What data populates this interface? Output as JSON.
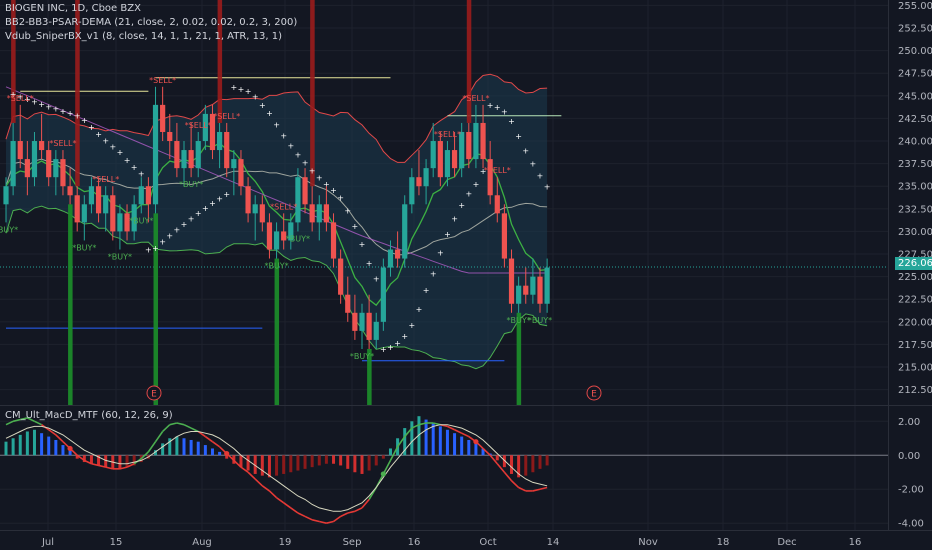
{
  "header": {
    "symbol_line": "BIOGEN INC, 1D, Cboe BZX",
    "indicator_1": "BB2-BB3-PSAR-DEMA (21, close, 2, 0.02, 0.02, 0.2, 3, 200)",
    "indicator_2": "Vdub_SniperBX_v1 (8, close, 14, 1, 1, 21, 1, ATR, 13, 1)",
    "macd_title": "CM_Ult_MacD_MTF (60, 12, 26, 9)",
    "last_price": "226.06"
  },
  "colors": {
    "background": "#131722",
    "grid": "#1e222d",
    "bull": "#ef5350",
    "bear": "#26a69a",
    "band_fill": "#1c3a4f",
    "red_bar": "#9b1c1c",
    "green_bar": "#1b8a2a",
    "sell_label": "#ef5350",
    "buy_label": "#4caf50",
    "psar": "#ffffff",
    "macd_blue": "#2962ff",
    "macd_red": "#d32f2f"
  },
  "chart_data": [
    {
      "type": "candlestick",
      "price_axis": {
        "ticks": [
          212.5,
          215.0,
          217.5,
          220.0,
          222.5,
          225.0,
          227.5,
          230.0,
          232.5,
          235.0,
          237.5,
          240.0,
          242.5,
          245.0,
          247.5,
          250.0,
          252.5,
          255.0
        ],
        "range": [
          210.8,
          255.6
        ]
      },
      "time_axis": {
        "labels": [
          "Jul",
          "15",
          "Aug",
          "19",
          "Sep",
          "16",
          "Oct",
          "14",
          "Nov",
          "18",
          "Dec",
          "16"
        ]
      },
      "candles": [
        [
          233,
          236,
          231,
          235
        ],
        [
          235,
          242,
          234,
          240
        ],
        [
          240,
          244,
          237,
          238
        ],
        [
          238,
          240,
          234,
          236
        ],
        [
          236,
          241,
          235,
          240
        ],
        [
          240,
          243,
          238,
          239
        ],
        [
          239,
          240,
          235,
          236
        ],
        [
          236,
          239,
          234,
          238
        ],
        [
          238,
          239,
          234,
          235
        ],
        [
          235,
          237,
          233,
          234
        ],
        [
          234,
          235,
          230,
          231
        ],
        [
          231,
          234,
          229,
          233
        ],
        [
          233,
          236,
          232,
          235
        ],
        [
          235,
          236,
          231,
          232
        ],
        [
          232,
          235,
          230,
          234
        ],
        [
          234,
          235,
          229,
          230
        ],
        [
          230,
          233,
          228,
          232
        ],
        [
          232,
          233,
          229,
          230
        ],
        [
          230,
          234,
          229,
          233
        ],
        [
          233,
          236,
          232,
          235
        ],
        [
          235,
          236,
          231,
          233
        ],
        [
          233,
          246,
          232,
          244
        ],
        [
          244,
          246,
          240,
          241
        ],
        [
          241,
          243,
          238,
          240
        ],
        [
          240,
          242,
          236,
          237
        ],
        [
          237,
          240,
          235,
          239
        ],
        [
          239,
          242,
          236,
          237
        ],
        [
          237,
          241,
          236,
          240
        ],
        [
          240,
          244,
          239,
          243
        ],
        [
          243,
          244,
          238,
          239
        ],
        [
          239,
          242,
          237,
          241
        ],
        [
          241,
          242,
          236,
          237
        ],
        [
          237,
          239,
          234,
          238
        ],
        [
          238,
          239,
          234,
          235
        ],
        [
          235,
          236,
          231,
          232
        ],
        [
          232,
          234,
          229,
          233
        ],
        [
          233,
          234,
          230,
          231
        ],
        [
          231,
          232,
          227,
          228
        ],
        [
          228,
          231,
          227,
          230
        ],
        [
          230,
          232,
          228,
          229
        ],
        [
          229,
          232,
          228,
          231
        ],
        [
          231,
          237,
          230,
          236
        ],
        [
          236,
          237,
          232,
          233
        ],
        [
          233,
          235,
          230,
          231
        ],
        [
          231,
          234,
          229,
          233
        ],
        [
          233,
          235,
          230,
          231
        ],
        [
          231,
          232,
          226,
          227
        ],
        [
          227,
          228,
          222,
          223
        ],
        [
          223,
          225,
          220,
          221
        ],
        [
          221,
          223,
          218,
          219
        ],
        [
          219,
          222,
          217,
          221
        ],
        [
          221,
          223,
          217,
          218
        ],
        [
          218,
          221,
          217,
          220
        ],
        [
          220,
          227,
          219,
          226
        ],
        [
          226,
          229,
          225,
          228
        ],
        [
          228,
          230,
          226,
          227
        ],
        [
          227,
          234,
          226,
          233
        ],
        [
          233,
          237,
          232,
          236
        ],
        [
          236,
          239,
          234,
          235
        ],
        [
          235,
          238,
          233,
          237
        ],
        [
          237,
          242,
          236,
          240
        ],
        [
          240,
          241,
          235,
          236
        ],
        [
          236,
          240,
          235,
          239
        ],
        [
          239,
          241,
          236,
          237
        ],
        [
          237,
          242,
          236,
          241
        ],
        [
          241,
          242,
          237,
          238
        ],
        [
          238,
          244,
          237,
          242
        ],
        [
          242,
          244,
          237,
          238
        ],
        [
          238,
          240,
          233,
          234
        ],
        [
          234,
          236,
          231,
          232
        ],
        [
          232,
          233,
          226,
          227
        ],
        [
          227,
          228,
          221,
          222
        ],
        [
          222,
          225,
          221,
          224
        ],
        [
          224,
          226,
          222,
          223
        ],
        [
          223,
          227,
          222,
          225
        ],
        [
          225,
          226,
          221,
          222
        ],
        [
          222,
          227,
          221,
          226
        ]
      ],
      "indicator_labels": {
        "sell": "*SELL*",
        "buy": "*BUY*",
        "earnings": "E"
      }
    },
    {
      "type": "bar",
      "name": "MACD histogram",
      "value_axis": {
        "ticks": [
          2.0,
          0.0,
          -2.0,
          -4.0
        ],
        "tick_labels": [
          "2.00",
          "0.00",
          "-2.00",
          "-4.00"
        ],
        "range": [
          -4.4,
          2.9
        ]
      },
      "histogram": [
        0.8,
        1.0,
        1.2,
        1.4,
        1.5,
        1.3,
        1.1,
        0.9,
        0.6,
        0.3,
        -0.2,
        -0.4,
        -0.5,
        -0.6,
        -0.7,
        -0.8,
        -0.8,
        -0.7,
        -0.6,
        -0.4,
        -0.2,
        0.3,
        0.7,
        1.0,
        1.1,
        1.0,
        0.9,
        0.8,
        0.6,
        0.4,
        0.2,
        -0.2,
        -0.5,
        -0.7,
        -0.9,
        -1.1,
        -1.2,
        -1.3,
        -1.2,
        -1.1,
        -1.0,
        -0.9,
        -0.8,
        -0.7,
        -0.6,
        -0.5,
        -0.5,
        -0.6,
        -0.8,
        -1.0,
        -1.1,
        -0.9,
        -0.6,
        -0.2,
        0.4,
        1.0,
        1.6,
        2.0,
        2.3,
        2.1,
        1.9,
        1.7,
        1.5,
        1.3,
        1.1,
        0.9,
        0.7,
        0.4,
        0.1,
        -0.3,
        -0.7,
        -1.1,
        -1.3,
        -1.2,
        -1.0,
        -0.8,
        -0.6
      ],
      "macd_line": [
        1.8,
        2.0,
        2.1,
        2.2,
        2.0,
        1.8,
        1.5,
        1.2,
        0.8,
        0.4,
        0.0,
        -0.3,
        -0.5,
        -0.6,
        -0.7,
        -0.8,
        -0.8,
        -0.7,
        -0.5,
        -0.2,
        0.2,
        0.8,
        1.4,
        1.8,
        1.9,
        1.8,
        1.6,
        1.4,
        1.1,
        0.8,
        0.5,
        0.1,
        -0.3,
        -0.7,
        -1.0,
        -1.4,
        -1.8,
        -2.1,
        -2.5,
        -2.8,
        -3.1,
        -3.4,
        -3.6,
        -3.8,
        -3.9,
        -4.0,
        -3.9,
        -3.6,
        -3.4,
        -3.3,
        -3.1,
        -2.6,
        -1.9,
        -1.1,
        -0.3,
        0.5,
        1.1,
        1.6,
        1.8,
        1.9,
        1.9,
        1.8,
        1.7,
        1.5,
        1.3,
        1.1,
        0.8,
        0.4,
        0.0,
        -0.5,
        -1.0,
        -1.5,
        -1.9,
        -2.1,
        -2.1,
        -2.0,
        -1.9
      ],
      "signal_line": [
        1.0,
        1.2,
        1.4,
        1.6,
        1.7,
        1.7,
        1.6,
        1.4,
        1.2,
        0.9,
        0.6,
        0.3,
        0.1,
        -0.1,
        -0.3,
        -0.4,
        -0.5,
        -0.5,
        -0.4,
        -0.3,
        -0.1,
        0.2,
        0.5,
        0.8,
        1.1,
        1.3,
        1.4,
        1.4,
        1.3,
        1.2,
        1.0,
        0.7,
        0.4,
        0.0,
        -0.3,
        -0.6,
        -0.9,
        -1.2,
        -1.5,
        -1.8,
        -2.1,
        -2.4,
        -2.6,
        -2.9,
        -3.1,
        -3.2,
        -3.3,
        -3.3,
        -3.2,
        -3.0,
        -2.8,
        -2.4,
        -1.9,
        -1.3,
        -0.7,
        -0.2,
        0.3,
        0.8,
        1.2,
        1.5,
        1.7,
        1.8,
        1.8,
        1.7,
        1.6,
        1.4,
        1.2,
        0.9,
        0.5,
        0.1,
        -0.3,
        -0.7,
        -1.1,
        -1.4,
        -1.6,
        -1.7,
        -1.8
      ]
    }
  ]
}
